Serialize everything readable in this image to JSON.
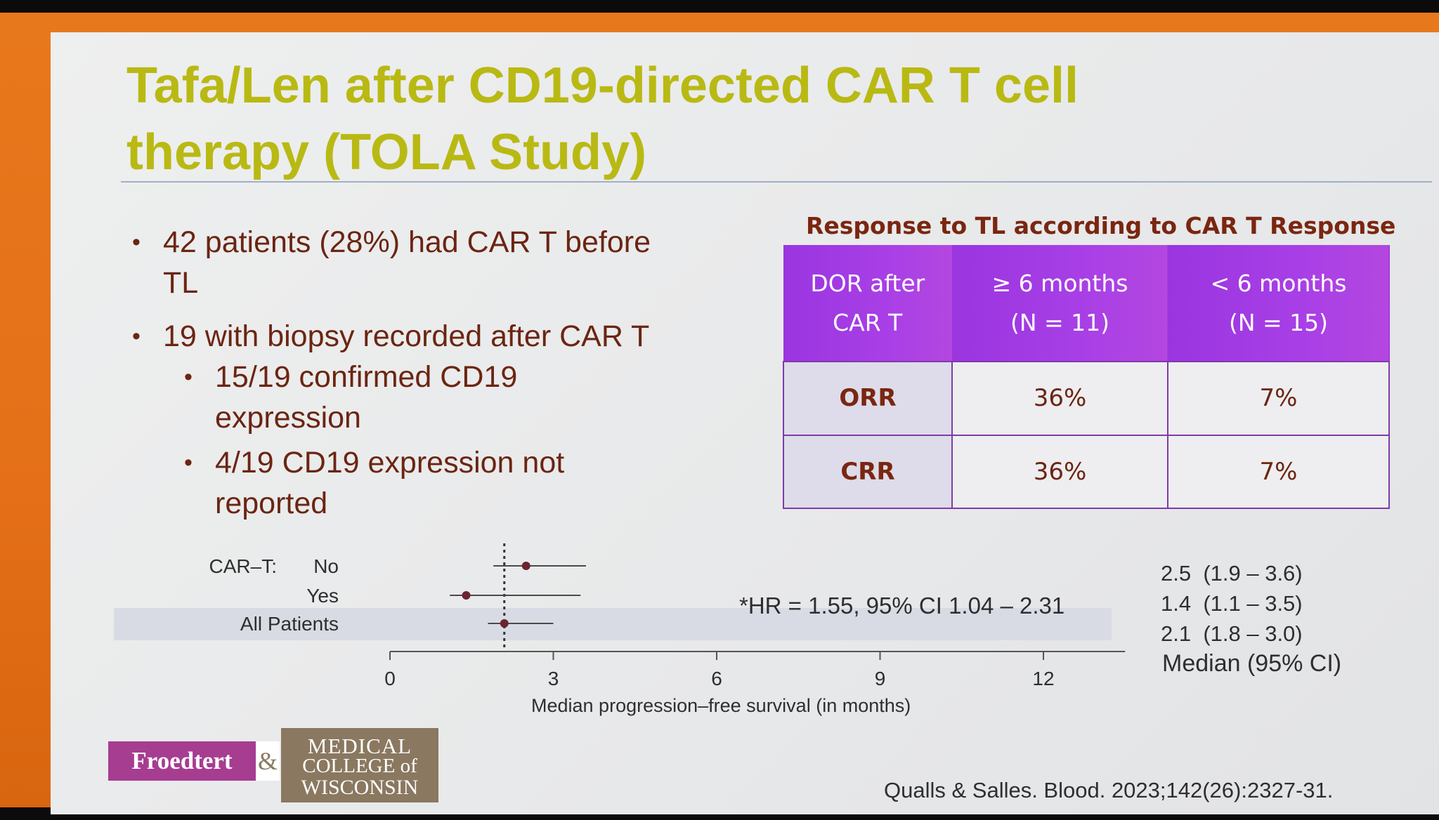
{
  "title": {
    "line1": "Tafa/Len after CD19-directed CAR T cell",
    "line2": "therapy (TOLA Study)"
  },
  "bullets": [
    {
      "level": 1,
      "lines": [
        "42 patients (28%) had CAR T before",
        "TL"
      ]
    },
    {
      "level": 1,
      "lines": [
        "19 with biopsy recorded after CAR T"
      ]
    },
    {
      "level": 2,
      "lines": [
        "15/19 confirmed CD19",
        "expression"
      ]
    },
    {
      "level": 2,
      "lines": [
        "4/19 CD19 expression not",
        "reported"
      ]
    }
  ],
  "response_table": {
    "caption": "Response to TL according to CAR T Response",
    "headers": [
      {
        "line1": "DOR after",
        "line2": "CAR T"
      },
      {
        "line1": "≥ 6 months",
        "line2": "(N = 11)"
      },
      {
        "line1": "< 6 months",
        "line2": "(N = 15)"
      }
    ],
    "rows": [
      {
        "label": "ORR",
        "values": [
          "36%",
          "7%"
        ]
      },
      {
        "label": "CRR",
        "values": [
          "36%",
          "7%"
        ]
      }
    ],
    "header_color": "#a43ce4",
    "border_color": "#7f3aa8"
  },
  "chart_data": {
    "type": "forest",
    "row_group_label": "CAR–T:",
    "rows": [
      {
        "label": "No",
        "median": 2.5,
        "ci_low": 1.9,
        "ci_high": 3.6,
        "ci_text": "2.5  (1.9 – 3.6)"
      },
      {
        "label": "Yes",
        "median": 1.4,
        "ci_low": 1.1,
        "ci_high": 3.5,
        "ci_text": "1.4  (1.1 – 3.5)"
      },
      {
        "label": "All Patients",
        "median": 2.1,
        "ci_low": 1.8,
        "ci_high": 3.0,
        "ci_text": "2.1  (1.8 – 3.0)",
        "highlight": true
      }
    ],
    "reference_line": 2.1,
    "xlim": [
      0,
      13.5
    ],
    "xticks": [
      0,
      3,
      6,
      9,
      12
    ],
    "xlabel": "Median progression–free survival (in months)",
    "column_header": "Median (95% CI)",
    "annotation": "*HR = 1.55, 95% CI 1.04 – 2.31",
    "point_color": "#6b2430"
  },
  "logo": {
    "froedtert": "Froedtert",
    "ampersand": "&",
    "mcw_line1": "MEDICAL",
    "mcw_line2": "COLLEGE of",
    "mcw_line3": "WISCONSIN"
  },
  "citation": "Qualls & Salles. Blood. 2023;142(26):2327-31."
}
